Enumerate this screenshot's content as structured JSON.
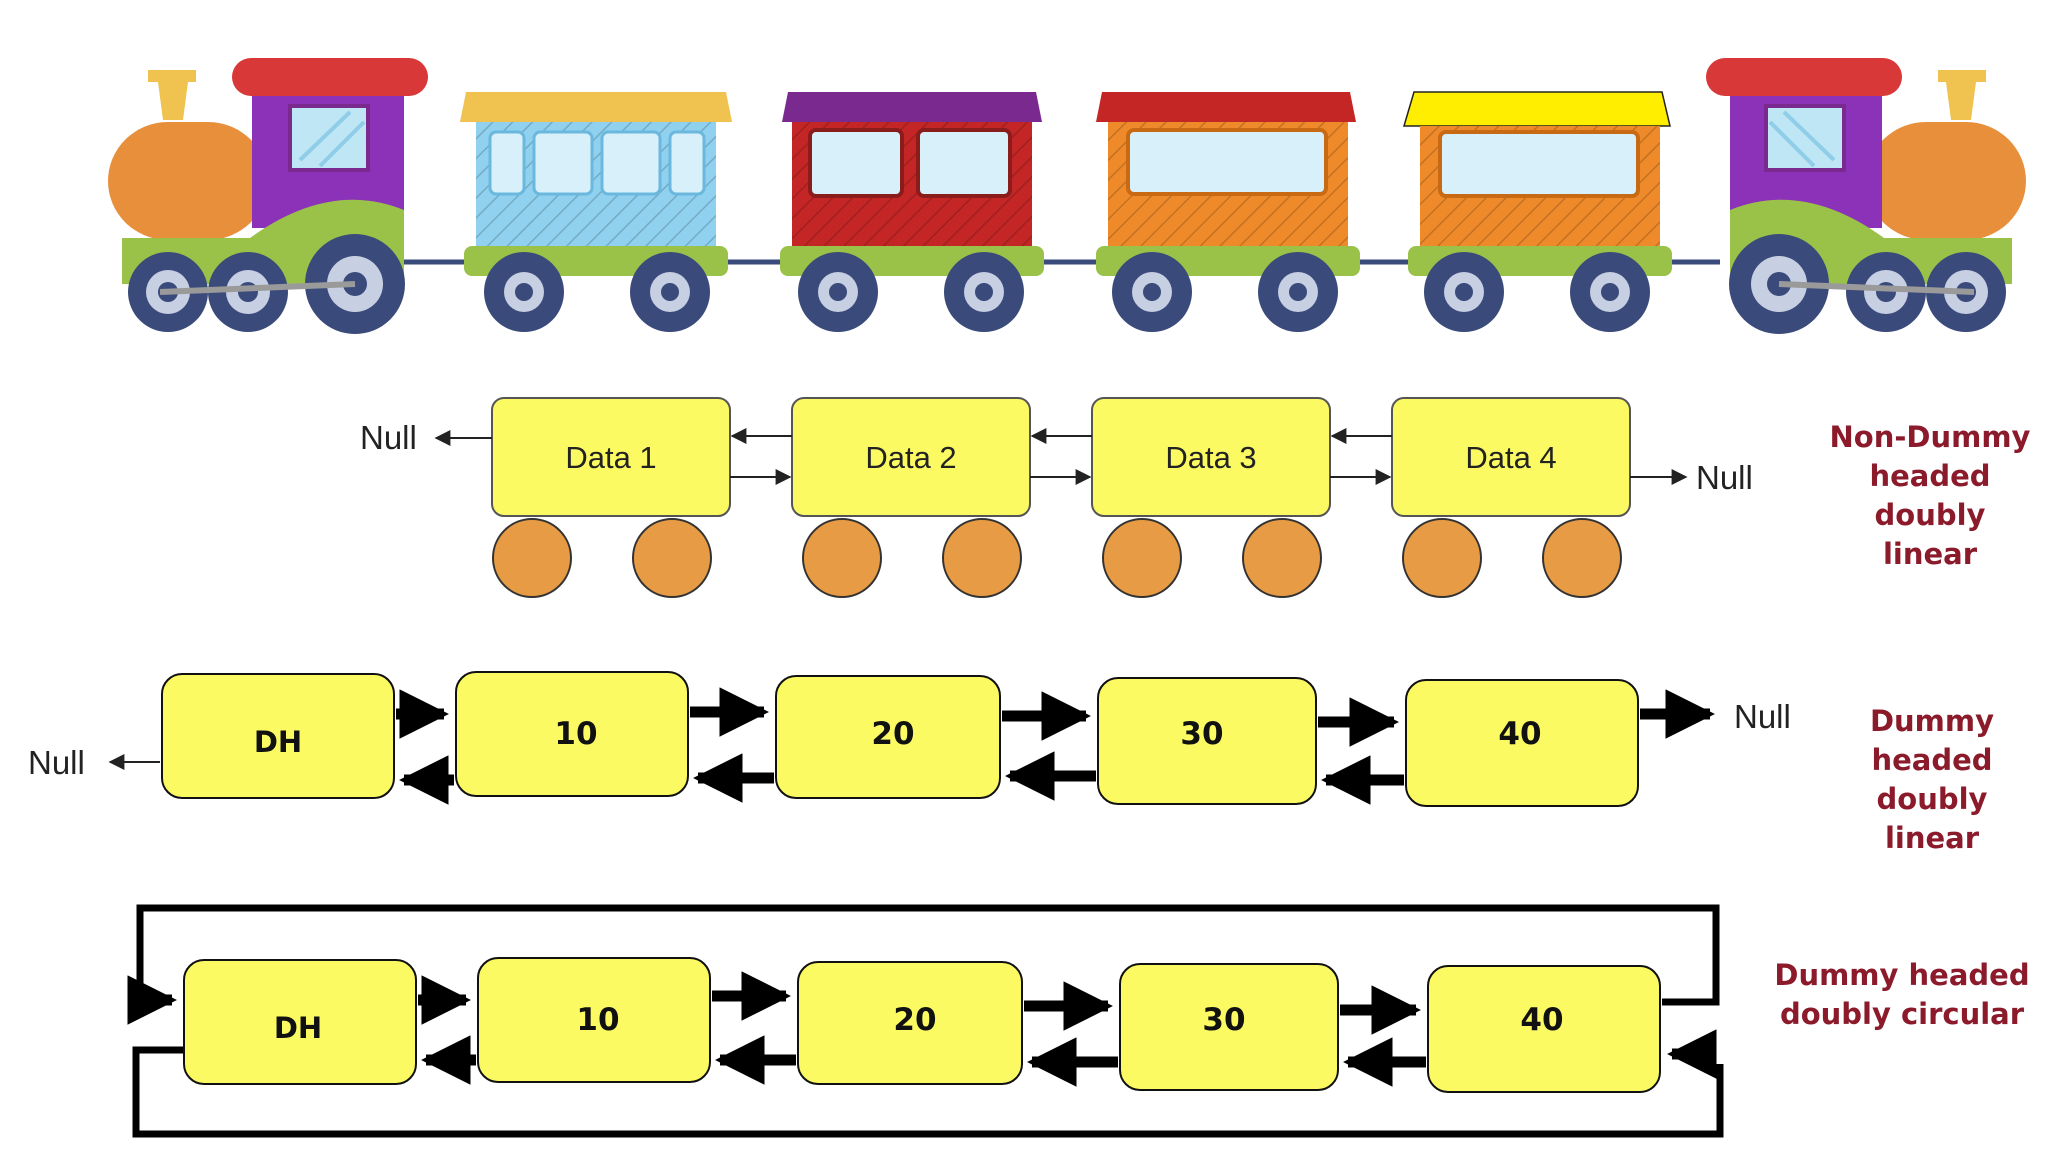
{
  "labels": {
    "null": "Null",
    "dh": "DH"
  },
  "section_linear": {
    "nodes": [
      "Data 1",
      "Data 2",
      "Data 3",
      "Data 4"
    ],
    "caption": [
      "Non-Dummy",
      "headed doubly",
      "linear"
    ]
  },
  "section_dummy_linear": {
    "nodes": [
      "10",
      "20",
      "30",
      "40"
    ],
    "caption": [
      "Dummy",
      "headed doubly",
      "linear"
    ]
  },
  "section_dummy_circular": {
    "nodes": [
      "10",
      "20",
      "30",
      "40"
    ],
    "caption": [
      "Dummy headed",
      "doubly circular"
    ]
  },
  "colors": {
    "node_fill": "#fbfa63",
    "wheel_fill": "#e89b45",
    "caption": "#8b1a2b",
    "loco_body": "#e88f3c",
    "loco_cab": "#8c32b8",
    "loco_roof": "#d93838",
    "chassis": "#9ac249",
    "wheel": "#3a4a7a"
  },
  "train": {
    "cars": [
      {
        "type": "locomotive",
        "facing": "right"
      },
      {
        "type": "coach",
        "roof": "#f0c24f",
        "body": "#8fd1ef"
      },
      {
        "type": "coach",
        "roof": "#7a2a8e",
        "body": "#c42626"
      },
      {
        "type": "coach",
        "roof": "#c42626",
        "body": "#ee8a2a"
      },
      {
        "type": "coach",
        "roof": "#ffee00",
        "body": "#ee8a2a"
      },
      {
        "type": "locomotive",
        "facing": "left"
      }
    ]
  }
}
